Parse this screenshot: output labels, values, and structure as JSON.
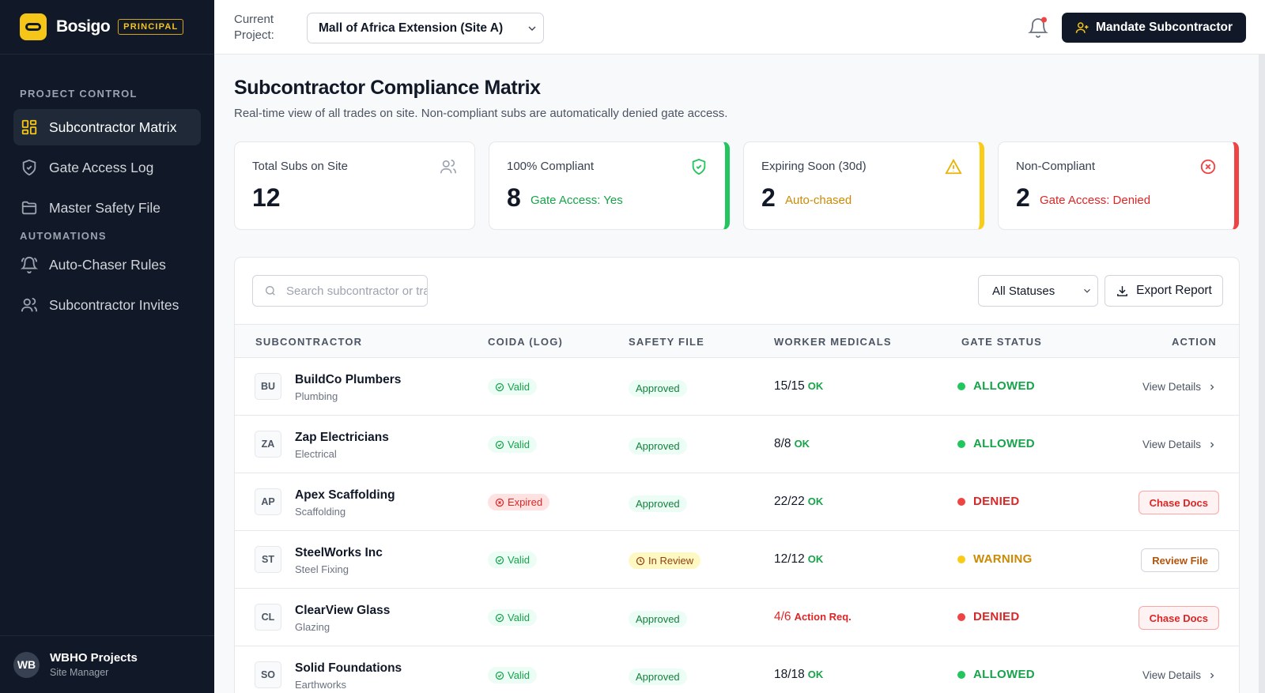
{
  "brand": {
    "name": "Bosigo",
    "role_badge": "PRINCIPAL"
  },
  "sidebar": {
    "sections": [
      "PROJECT CONTROL",
      "AUTOMATIONS"
    ],
    "items": [
      {
        "label": "Subcontractor Matrix",
        "icon": "grid-icon",
        "active": true
      },
      {
        "label": "Gate Access Log",
        "icon": "shield-icon"
      },
      {
        "label": "Master Safety File",
        "icon": "folder-icon"
      },
      {
        "label": "Auto-Chaser Rules",
        "icon": "bell-ring-icon"
      },
      {
        "label": "Subcontractor Invites",
        "icon": "users-icon"
      }
    ],
    "user": {
      "initials": "WB",
      "name": "WBHO Projects",
      "role": "Site Manager"
    }
  },
  "topbar": {
    "project_label": "Current Project:",
    "project_value": "Mall of Africa Extension (Site A)",
    "mandate_button": "Mandate Subcontractor"
  },
  "page": {
    "title": "Subcontractor Compliance Matrix",
    "subtitle": "Real-time view of all trades on site. Non-compliant subs are automatically denied gate access."
  },
  "stats": [
    {
      "label": "Total Subs on Site",
      "value": "12",
      "note": ""
    },
    {
      "label": "100% Compliant",
      "value": "8",
      "note": "Gate Access: Yes",
      "accent": "#22c55e"
    },
    {
      "label": "Expiring Soon (30d)",
      "value": "2",
      "note": "Auto-chased",
      "accent": "#facc15"
    },
    {
      "label": "Non-Compliant",
      "value": "2",
      "note": "Gate Access: Denied",
      "accent": "#ef4444"
    }
  ],
  "toolbar": {
    "search_placeholder": "Search subcontractor or trade...",
    "status_filter": "All Statuses",
    "export_label": "Export Report"
  },
  "table": {
    "columns": [
      "SUBCONTRACTOR",
      "COIDA (LOG)",
      "SAFETY FILE",
      "WORKER MEDICALS",
      "GATE STATUS",
      "ACTION"
    ],
    "rows": [
      {
        "initials": "BU",
        "name": "BuildCo Plumbers",
        "trade": "Plumbing",
        "coida": "Valid",
        "safety": "Approved",
        "medicals": "15/15",
        "med_status": "OK",
        "gate": "ALLOWED",
        "action": "View Details"
      },
      {
        "initials": "ZA",
        "name": "Zap Electricians",
        "trade": "Electrical",
        "coida": "Valid",
        "safety": "Approved",
        "medicals": "8/8",
        "med_status": "OK",
        "gate": "ALLOWED",
        "action": "View Details"
      },
      {
        "initials": "AP",
        "name": "Apex Scaffolding",
        "trade": "Scaffolding",
        "coida": "Expired",
        "safety": "Approved",
        "medicals": "22/22",
        "med_status": "OK",
        "gate": "DENIED",
        "action": "Chase Docs"
      },
      {
        "initials": "ST",
        "name": "SteelWorks Inc",
        "trade": "Steel Fixing",
        "coida": "Valid",
        "safety": "In Review",
        "medicals": "12/12",
        "med_status": "OK",
        "gate": "WARNING",
        "action": "Review File"
      },
      {
        "initials": "CL",
        "name": "ClearView Glass",
        "trade": "Glazing",
        "coida": "Valid",
        "safety": "Approved",
        "medicals": "4/6",
        "med_status": "Action Req.",
        "gate": "DENIED",
        "action": "Chase Docs"
      },
      {
        "initials": "SO",
        "name": "Solid Foundations",
        "trade": "Earthworks",
        "coida": "Valid",
        "safety": "Approved",
        "medicals": "18/18",
        "med_status": "OK",
        "gate": "ALLOWED",
        "action": "View Details"
      }
    ]
  }
}
